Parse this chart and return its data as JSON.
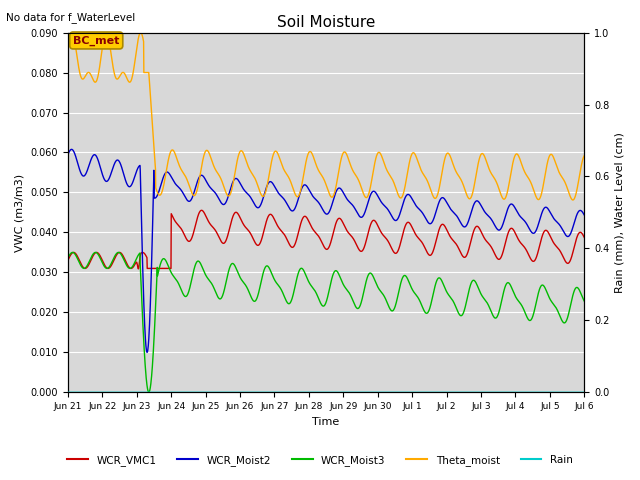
{
  "title": "Soil Moisture",
  "note": "No data for f_WaterLevel",
  "ylabel_left": "VWC (m3/m3)",
  "ylabel_right": "Rain (mm), Water Level (cm)",
  "xlabel": "Time",
  "ylim_left": [
    0.0,
    0.09
  ],
  "ylim_right": [
    0.0,
    1.0
  ],
  "yticks_left": [
    0.0,
    0.01,
    0.02,
    0.03,
    0.04,
    0.05,
    0.06,
    0.07,
    0.08,
    0.09
  ],
  "yticks_right": [
    0.0,
    0.2,
    0.4,
    0.6,
    0.8,
    1.0
  ],
  "xtick_labels": [
    "Jun 21",
    "Jun 22",
    "Jun 23",
    "Jun 24",
    "Jun 25",
    "Jun 26",
    "Jun 27",
    "Jun 28",
    "Jun 29",
    "Jun 30",
    "Jul 1",
    "Jul 2",
    "Jul 3",
    "Jul 4",
    "Jul 5",
    "Jul 6"
  ],
  "n_days": 15,
  "background_color": "#e0e0e0",
  "plot_bg_color": "#d8d8d8",
  "legend_entries": [
    "WCR_VMC1",
    "WCR_Moist2",
    "WCR_Moist3",
    "Theta_moist",
    "Rain"
  ],
  "legend_colors": [
    "#cc0000",
    "#0000cc",
    "#00bb00",
    "#ffaa00",
    "#00cccc"
  ],
  "bc_met_label": "BC_met",
  "bc_met_facecolor": "#ffcc00",
  "bc_met_edgecolor": "#aa8800",
  "bc_met_text_color": "#880000"
}
